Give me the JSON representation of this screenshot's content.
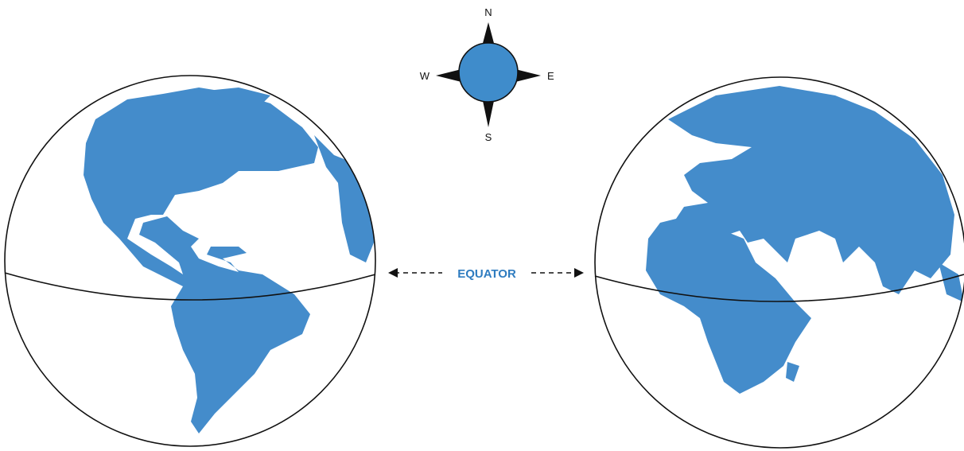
{
  "compass": {
    "north": "N",
    "east": "E",
    "south": "S",
    "west": "W"
  },
  "equator_label": "EQUATOR"
}
